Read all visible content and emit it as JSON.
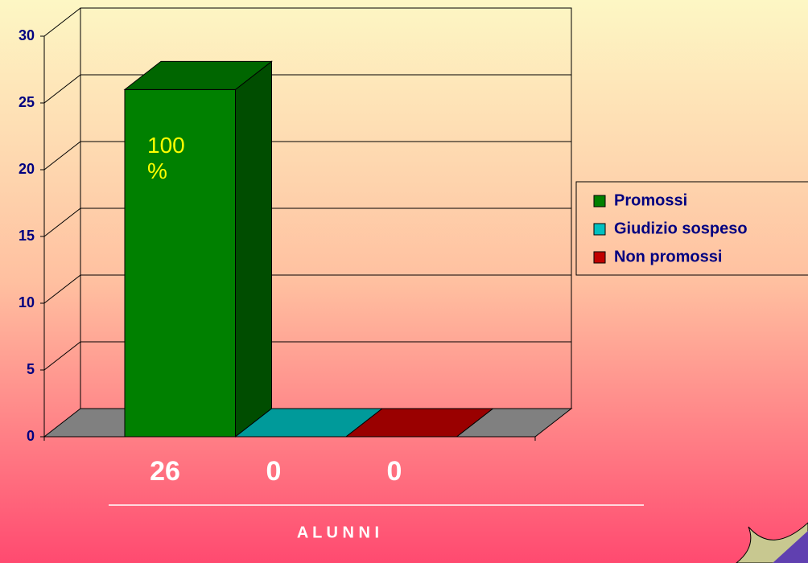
{
  "chart_data": {
    "type": "bar3d",
    "series": [
      {
        "name": "Promossi",
        "color": "#008000",
        "values": [
          26
        ]
      },
      {
        "name": "Giudizio sospeso",
        "color": "#00c0c0",
        "values": [
          0
        ]
      },
      {
        "name": "Non promossi",
        "color": "#c00000",
        "values": [
          0
        ]
      }
    ],
    "annotation": "100 %",
    "xlabel": "A L U N N I",
    "ylim": [
      0,
      30
    ],
    "yticks": [
      0,
      5,
      10,
      15,
      20,
      25,
      30
    ],
    "grid": true
  }
}
